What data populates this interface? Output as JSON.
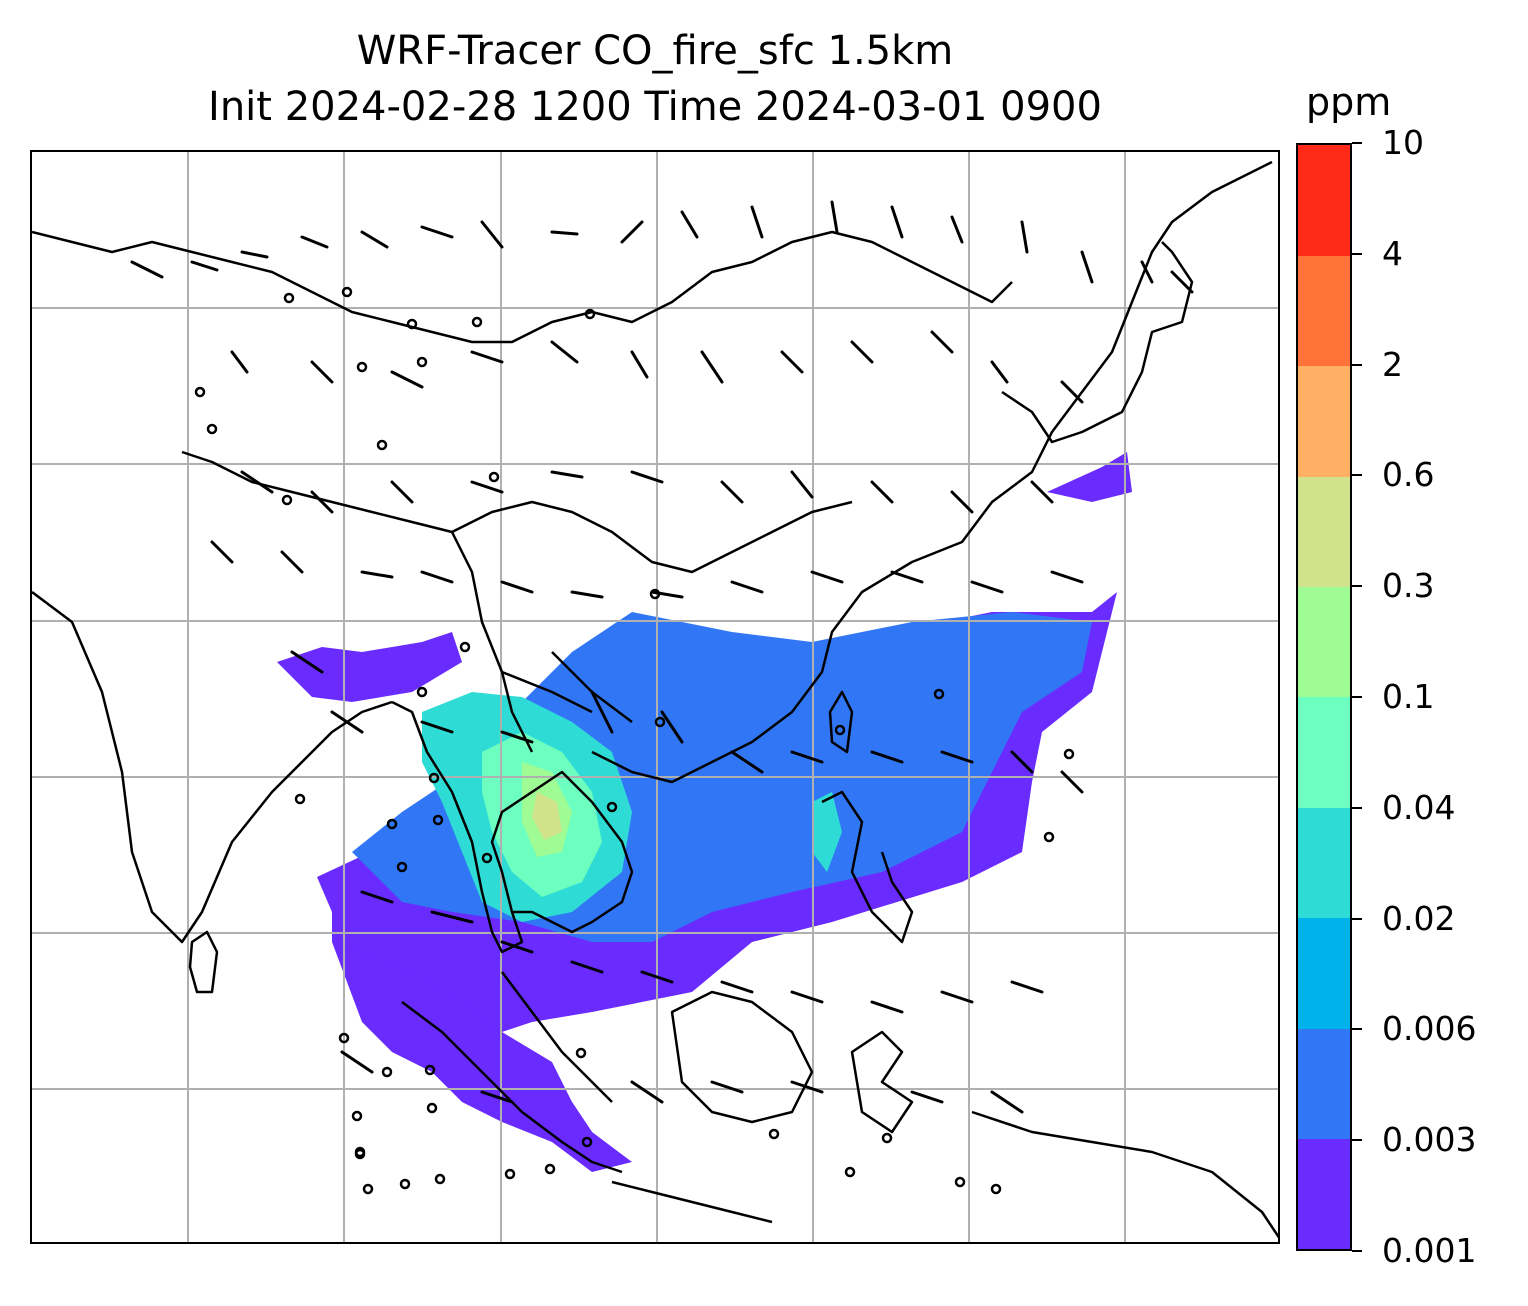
{
  "title": {
    "line1": "WRF-Tracer CO_fire_sfc 1.5km",
    "line2": "Init 2024-02-28 1200 Time 2024-03-01 0900"
  },
  "colorbar": {
    "unit": "ppm",
    "levels": [
      "0.001",
      "0.003",
      "0.006",
      "0.02",
      "0.04",
      "0.1",
      "0.3",
      "0.6",
      "2",
      "4",
      "10"
    ],
    "colors": [
      "#6a2bff",
      "#3177f5",
      "#00b2ea",
      "#2fdcd5",
      "#6cffc0",
      "#9ffb93",
      "#d0e28a",
      "#ffb065",
      "#ff7238",
      "#ff2a17"
    ]
  },
  "map": {
    "field": "CO_fire_sfc",
    "grid": "on",
    "features": [
      "coastlines",
      "country-borders",
      "wind-barbs",
      "calm-circles"
    ]
  }
}
